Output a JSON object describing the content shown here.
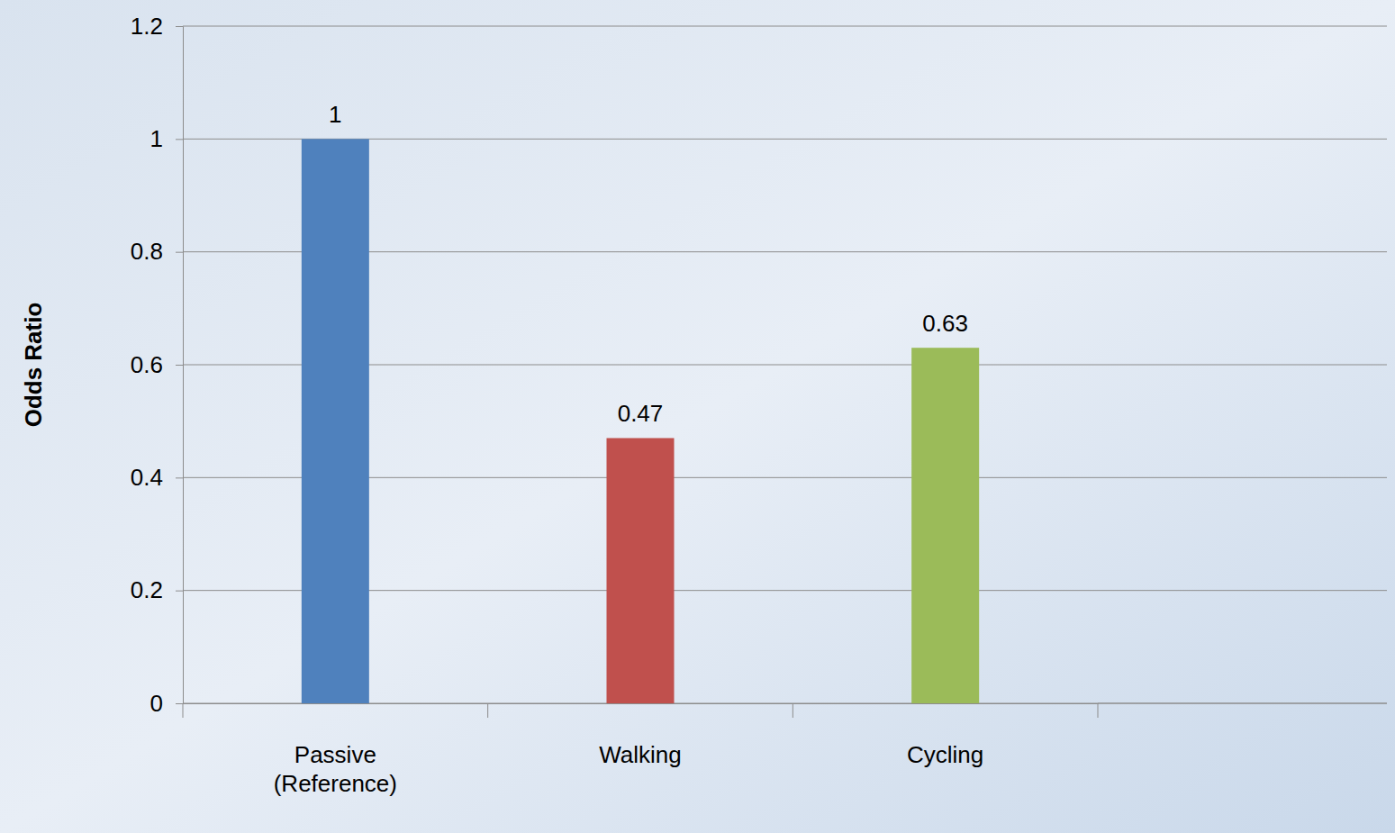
{
  "chart_data": {
    "type": "bar",
    "y_label": "Odds Ratio",
    "categories": [
      "Passive (Reference)",
      "Walking",
      "Cycling"
    ],
    "values": [
      1,
      0.47,
      0.63
    ],
    "colors": [
      "#4f81bd",
      "#c0504d",
      "#9bbb59"
    ],
    "ylim": [
      0,
      1.2
    ],
    "yticks": [
      0,
      0.2,
      0.4,
      0.6,
      0.8,
      1,
      1.2
    ],
    "grid": true,
    "data_labels": true
  }
}
